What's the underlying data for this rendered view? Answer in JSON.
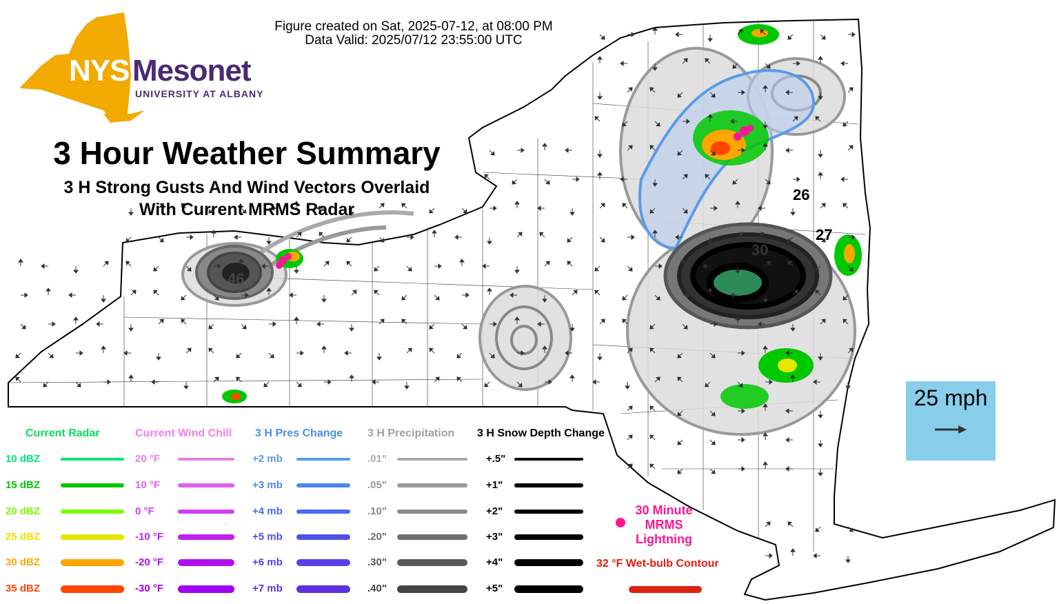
{
  "header": {
    "created": "Figure created on Sat, 2025-07-12, at 08:00 PM",
    "valid": "Data Valid: 2025/07/12 23:55:00 UTC"
  },
  "logo": {
    "nys": "NYS",
    "mesonet": "Mesonet",
    "sub": "UNIVERSITY AT ALBANY",
    "state_color": "#f2a900",
    "brand_color": "#4b2a73"
  },
  "title": "3 Hour Weather Summary",
  "subtitle_1": "3 H Strong Gusts And Wind Vectors Overlaid",
  "subtitle_2": "With Current MRMS Radar",
  "gust_labels": [
    "26",
    "27",
    "46",
    "30"
  ],
  "legend": {
    "radar": {
      "title": "Current Radar",
      "title_color": "#00e060",
      "items": [
        {
          "label": "10 dBZ",
          "color": "#00e676"
        },
        {
          "label": "15 dBZ",
          "color": "#00c800"
        },
        {
          "label": "20 dBZ",
          "color": "#7cfc00"
        },
        {
          "label": "25 dBZ",
          "color": "#e6e600"
        },
        {
          "label": "30 dBZ",
          "color": "#ffa500"
        },
        {
          "label": "35 dBZ",
          "color": "#ff4500"
        }
      ]
    },
    "windchill": {
      "title": "Current Wind Chill",
      "title_color": "#ee82ee",
      "items": [
        {
          "label": "20 °F",
          "color": "#e87ee8"
        },
        {
          "label": "10 °F",
          "color": "#e060f0"
        },
        {
          "label": "0 °F",
          "color": "#d040f0"
        },
        {
          "label": "-10 °F",
          "color": "#c020f0"
        },
        {
          "label": "-20 °F",
          "color": "#b010f0"
        },
        {
          "label": "-30 °F",
          "color": "#a000f0"
        }
      ]
    },
    "pressure": {
      "title": "3 H Pres Change",
      "title_color": "#4a90e2",
      "items": [
        {
          "label": "+2 mb",
          "color": "#5a9ae8"
        },
        {
          "label": "+3 mb",
          "color": "#4a88f0"
        },
        {
          "label": "+4 mb",
          "color": "#4a68f0"
        },
        {
          "label": "+5 mb",
          "color": "#5050e8"
        },
        {
          "label": "+6 mb",
          "color": "#5a40e8"
        },
        {
          "label": "+7 mb",
          "color": "#6030e0"
        }
      ]
    },
    "precip": {
      "title": "3 H Precipitation",
      "title_color": "#a0a0a0",
      "items": [
        {
          "label": ".01\"",
          "color": "#aaaaaa"
        },
        {
          "label": ".05\"",
          "color": "#999999"
        },
        {
          "label": ".10\"",
          "color": "#888888"
        },
        {
          "label": ".20\"",
          "color": "#6e6e6e"
        },
        {
          "label": ".30\"",
          "color": "#595959"
        },
        {
          "label": ".40\"",
          "color": "#444444"
        }
      ]
    },
    "snow": {
      "title": "3 H Snow Depth Change",
      "title_color": "#000000",
      "items": [
        {
          "label": "+.5\"",
          "color": "#000000"
        },
        {
          "label": "+1\"",
          "color": "#000000"
        },
        {
          "label": "+2\"",
          "color": "#000000"
        },
        {
          "label": "+3\"",
          "color": "#000000"
        },
        {
          "label": "+4\"",
          "color": "#000000"
        },
        {
          "label": "+5\"",
          "color": "#000000"
        }
      ]
    },
    "lightning": {
      "label": "30 Minute MRMS Lightning",
      "color": "#ff1493"
    },
    "wetbulb": {
      "label": "32 °F Wet-bulb Contour",
      "color": "#dd2211"
    }
  },
  "scale": {
    "label": "25 mph",
    "color": "#87ceeb",
    "arrow_icon": "arrow-right-icon"
  }
}
